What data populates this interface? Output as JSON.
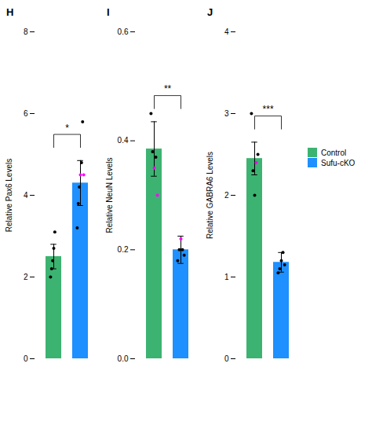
{
  "chart_data": [
    {
      "type": "bar",
      "title": "H",
      "categories": [
        "Control",
        "Sufu-cKO"
      ],
      "values": [
        2.5,
        4.3
      ],
      "errors": [
        0.3,
        0.55
      ],
      "colors": [
        "#3CB371",
        "#1E90FF"
      ],
      "dots": [
        [
          2.0,
          2.2,
          2.4,
          2.7,
          3.1
        ],
        [
          3.2,
          3.8,
          4.2,
          4.5,
          4.8,
          5.8,
          4.5
        ]
      ],
      "dot_colors": [
        [
          "black",
          "black",
          "black",
          "black",
          "black"
        ],
        [
          "black",
          "black",
          "black",
          "magenta",
          "black",
          "black",
          "magenta"
        ]
      ],
      "annotations": [
        "*"
      ],
      "ylabel": "Relative Pax6 Levels",
      "ylim": [
        0,
        8
      ],
      "yticks": [
        0,
        2,
        4,
        6,
        8
      ],
      "tick_labels": "y",
      "legend": "right"
    },
    {
      "type": "bar",
      "title": "I",
      "categories": [
        "Control",
        "Sufu-cKO"
      ],
      "values": [
        0.385,
        0.2
      ],
      "errors": [
        0.05,
        0.025
      ],
      "colors": [
        "#3CB371",
        "#1E90FF"
      ],
      "dots": [
        [
          0.45,
          0.38,
          0.35,
          0.37,
          0.3
        ],
        [
          0.18,
          0.2,
          0.22,
          0.2,
          0.19
        ]
      ],
      "dot_colors": [
        [
          "black",
          "black",
          "magenta",
          "black",
          "magenta"
        ],
        [
          "black",
          "black",
          "magenta",
          "black",
          "black"
        ]
      ],
      "annotations": [
        "**"
      ],
      "ylabel": "Relative NeuN Levels",
      "ylim": [
        0.0,
        0.6
      ],
      "yticks": [
        {
          "value": 0.0,
          "label": "0.0"
        },
        0.2,
        0.4,
        0.6
      ],
      "tick_labels": "y",
      "legend": "right"
    },
    {
      "type": "bar",
      "title": "J",
      "categories": [
        "Control",
        "Sufu-cKO"
      ],
      "values": [
        2.45,
        1.18
      ],
      "errors": [
        0.2,
        0.12
      ],
      "colors": [
        "#3CB371",
        "#1E90FF"
      ],
      "dots": [
        [
          3.0,
          2.3,
          2.0,
          2.4,
          2.5
        ],
        [
          1.05,
          1.1,
          1.2,
          1.3,
          1.15
        ]
      ],
      "dot_colors": [
        [
          "black",
          "black",
          "black",
          "magenta",
          "black"
        ],
        [
          "black",
          "black",
          "black",
          "black",
          "black"
        ]
      ],
      "annotations": [
        "***"
      ],
      "ylabel": "Relative GABRA6 Levels",
      "ylim": [
        0,
        4
      ],
      "yticks": [
        0,
        1,
        2,
        3,
        4
      ],
      "tick_labels": "y",
      "legend": "right"
    }
  ]
}
